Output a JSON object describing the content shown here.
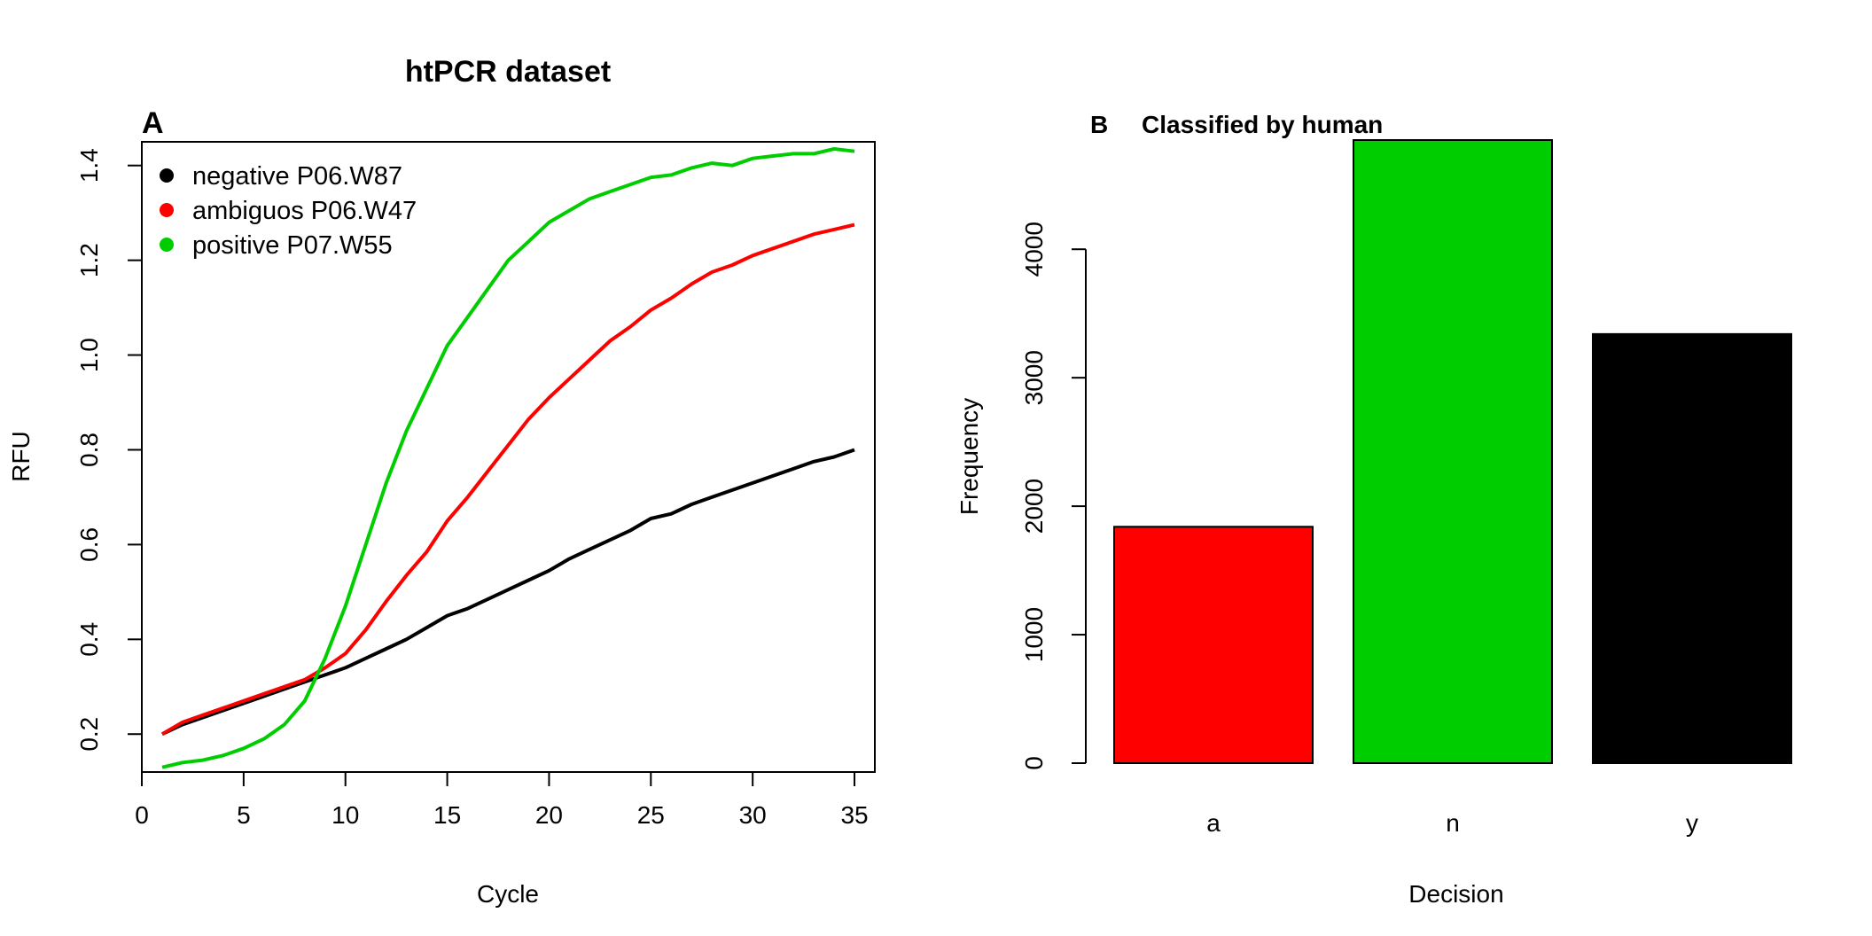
{
  "figure_title": "htPCR dataset",
  "chart_data": [
    {
      "type": "line",
      "panel_label": "A",
      "xlabel": "Cycle",
      "ylabel": "RFU",
      "xlim": [
        0,
        36
      ],
      "ylim": [
        0.12,
        1.45
      ],
      "xticks": [
        0,
        5,
        10,
        15,
        20,
        25,
        30,
        35
      ],
      "xtick_labels": [
        "0",
        "5",
        "10",
        "15",
        "20",
        "25",
        "30",
        "35"
      ],
      "yticks": [
        0.2,
        0.4,
        0.6,
        0.8,
        1.0,
        1.2,
        1.4
      ],
      "ytick_labels": [
        "0.2",
        "0.4",
        "0.6",
        "0.8",
        "1.0",
        "1.2",
        "1.4"
      ],
      "legend_position": "top-left",
      "x": [
        1,
        2,
        3,
        4,
        5,
        6,
        7,
        8,
        9,
        10,
        11,
        12,
        13,
        14,
        15,
        16,
        17,
        18,
        19,
        20,
        21,
        22,
        23,
        24,
        25,
        26,
        27,
        28,
        29,
        30,
        31,
        32,
        33,
        34,
        35
      ],
      "series": [
        {
          "name": "negative  P06.W87",
          "color": "#000000",
          "values": [
            0.2,
            0.22,
            0.235,
            0.25,
            0.265,
            0.28,
            0.295,
            0.31,
            0.325,
            0.34,
            0.36,
            0.38,
            0.4,
            0.425,
            0.45,
            0.465,
            0.485,
            0.505,
            0.525,
            0.545,
            0.57,
            0.59,
            0.61,
            0.63,
            0.655,
            0.665,
            0.685,
            0.7,
            0.715,
            0.73,
            0.745,
            0.76,
            0.775,
            0.785,
            0.8
          ]
        },
        {
          "name": "ambiguos  P06.W47",
          "color": "#ff0000",
          "values": [
            0.2,
            0.225,
            0.24,
            0.255,
            0.27,
            0.285,
            0.3,
            0.315,
            0.34,
            0.37,
            0.42,
            0.48,
            0.535,
            0.585,
            0.65,
            0.7,
            0.755,
            0.81,
            0.865,
            0.91,
            0.95,
            0.99,
            1.03,
            1.06,
            1.095,
            1.12,
            1.15,
            1.175,
            1.19,
            1.21,
            1.225,
            1.24,
            1.255,
            1.265,
            1.275
          ]
        },
        {
          "name": "positive  P07.W55",
          "color": "#00cd00",
          "values": [
            0.13,
            0.14,
            0.145,
            0.155,
            0.17,
            0.19,
            0.22,
            0.27,
            0.36,
            0.47,
            0.6,
            0.73,
            0.84,
            0.93,
            1.02,
            1.08,
            1.14,
            1.2,
            1.24,
            1.28,
            1.305,
            1.33,
            1.345,
            1.36,
            1.375,
            1.38,
            1.395,
            1.405,
            1.4,
            1.415,
            1.42,
            1.425,
            1.425,
            1.435,
            1.43
          ]
        }
      ]
    },
    {
      "type": "bar",
      "panel_label": "B",
      "title": "Classified by human",
      "xlabel": "Decision",
      "ylabel": "Frequency",
      "ylim": [
        0,
        4850
      ],
      "yticks": [
        0,
        1000,
        2000,
        3000,
        4000
      ],
      "ytick_labels": [
        "0",
        "1000",
        "2000",
        "3000",
        "4000"
      ],
      "categories": [
        "a",
        "n",
        "y"
      ],
      "values": [
        1840,
        4850,
        3340
      ],
      "colors": [
        "#ff0000",
        "#00cd00",
        "#000000"
      ]
    }
  ]
}
